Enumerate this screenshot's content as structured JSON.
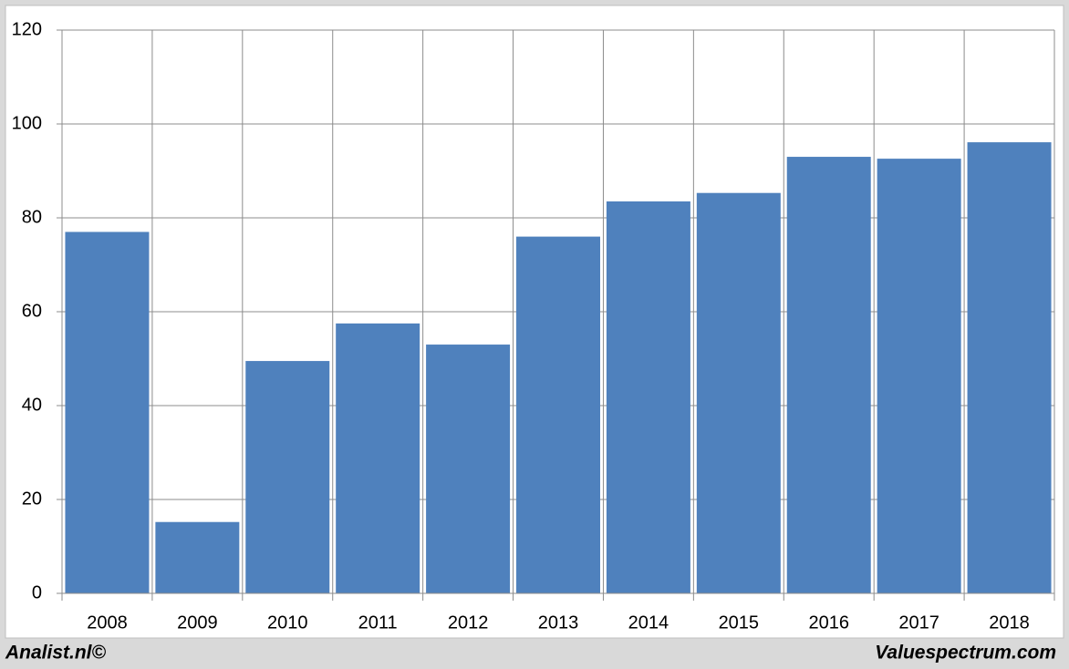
{
  "chart_data": {
    "type": "bar",
    "categories": [
      "2008",
      "2009",
      "2010",
      "2011",
      "2012",
      "2013",
      "2014",
      "2015",
      "2016",
      "2017",
      "2018"
    ],
    "values": [
      77,
      15.2,
      49.5,
      57.5,
      53,
      76,
      83.5,
      85.3,
      93,
      92.6,
      96.1
    ],
    "color": "#4f81bd",
    "ylim": [
      0,
      120
    ],
    "yticks": [
      0,
      20,
      40,
      60,
      80,
      100,
      120
    ],
    "grid": true
  },
  "footer": {
    "left": "Analist.nl©",
    "right": "Valuespectrum.com"
  }
}
